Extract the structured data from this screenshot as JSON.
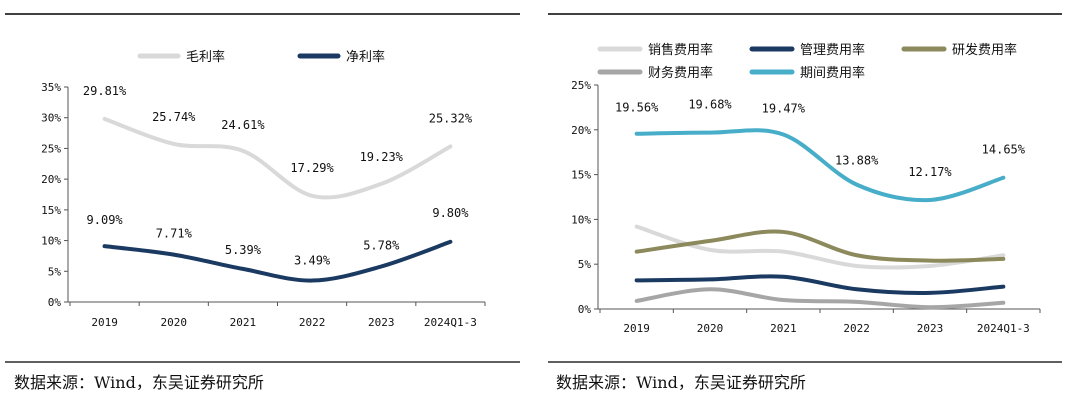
{
  "source_left": "数据来源：Wind，东吴证券研究所",
  "source_right": "数据来源：Wind，东吴证券研究所",
  "chart_data": [
    {
      "type": "line",
      "categories": [
        "2019",
        "2020",
        "2021",
        "2022",
        "2023",
        "2024Q1-3"
      ],
      "ylim": [
        0,
        35
      ],
      "yticks": [
        0,
        5,
        10,
        15,
        20,
        25,
        30,
        35
      ],
      "ytick_labels": [
        "0%",
        "5%",
        "10%",
        "15%",
        "20%",
        "25%",
        "30%",
        "35%"
      ],
      "series": [
        {
          "name": "毛利率",
          "color": "#d9d9d9",
          "values": [
            29.81,
            25.74,
            24.61,
            17.29,
            19.23,
            25.32
          ],
          "labels": [
            "29.81%",
            "25.74%",
            "24.61%",
            "17.29%",
            "19.23%",
            "25.32%"
          ]
        },
        {
          "name": "净利率",
          "color": "#1b3a62",
          "values": [
            9.09,
            7.71,
            5.39,
            3.49,
            5.78,
            9.8
          ],
          "labels": [
            "9.09%",
            "7.71%",
            "5.39%",
            "3.49%",
            "5.78%",
            "9.80%"
          ]
        }
      ]
    },
    {
      "type": "line",
      "categories": [
        "2019",
        "2020",
        "2021",
        "2022",
        "2023",
        "2024Q1-3"
      ],
      "ylim": [
        0,
        25
      ],
      "yticks": [
        0,
        5,
        10,
        15,
        20,
        25
      ],
      "ytick_labels": [
        "0%",
        "5%",
        "10%",
        "15%",
        "20%",
        "25%"
      ],
      "series": [
        {
          "name": "销售费用率",
          "color": "#d9d9d9",
          "values": [
            9.2,
            6.6,
            6.4,
            4.8,
            4.8,
            6.0
          ],
          "labels": []
        },
        {
          "name": "管理费用率",
          "color": "#1b3a62",
          "values": [
            3.2,
            3.3,
            3.6,
            2.2,
            1.8,
            2.5
          ],
          "labels": []
        },
        {
          "name": "研发费用率",
          "color": "#8c8a5c",
          "values": [
            6.4,
            7.6,
            8.6,
            6.0,
            5.4,
            5.6
          ],
          "labels": []
        },
        {
          "name": "财务费用率",
          "color": "#a6a6a6",
          "values": [
            0.9,
            2.2,
            1.0,
            0.8,
            0.2,
            0.7
          ],
          "labels": []
        },
        {
          "name": "期间费用率",
          "color": "#47adc8",
          "values": [
            19.56,
            19.68,
            19.47,
            13.88,
            12.17,
            14.65
          ],
          "labels": [
            "19.56%",
            "19.68%",
            "19.47%",
            "13.88%",
            "12.17%",
            "14.65%"
          ]
        }
      ]
    }
  ]
}
